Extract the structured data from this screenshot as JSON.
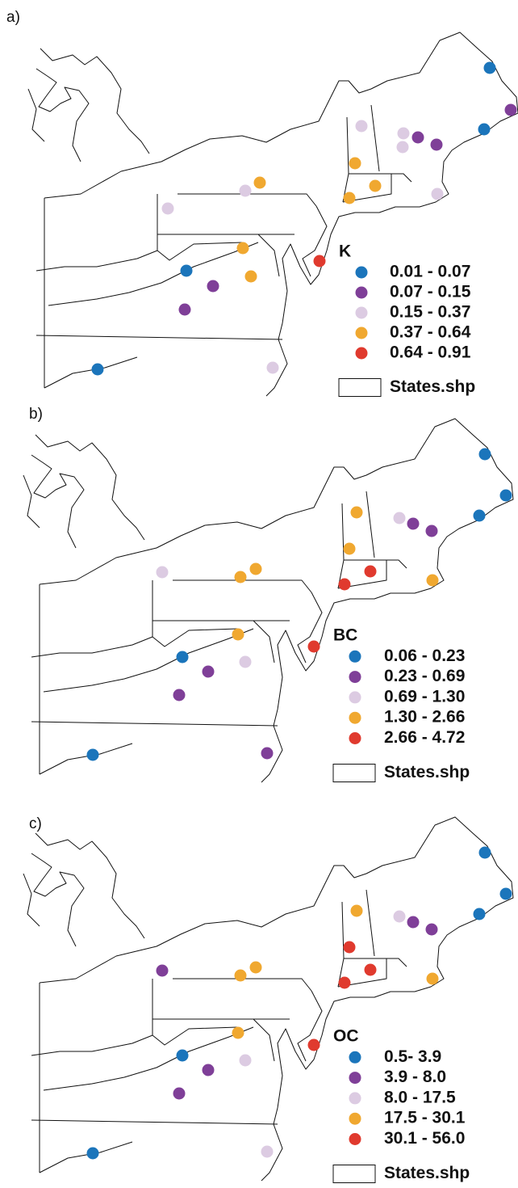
{
  "panels": [
    {
      "label": "a)",
      "legend": {
        "title": "K",
        "layer": "States.shp",
        "classes": [
          {
            "label": "0.01 - 0.07",
            "color": "#1b75bb"
          },
          {
            "label": "0.07 - 0.15",
            "color": "#7f3f98"
          },
          {
            "label": "0.15 - 0.37",
            "color": "#dccbe2"
          },
          {
            "label": "0.37 - 0.64",
            "color": "#f0a830"
          },
          {
            "label": "0.64 - 0.91",
            "color": "#e03a2e"
          }
        ]
      }
    },
    {
      "label": "b)",
      "legend": {
        "title": "BC",
        "layer": "States.shp",
        "classes": [
          {
            "label": "0.06 - 0.23",
            "color": "#1b75bb"
          },
          {
            "label": "0.23 - 0.69",
            "color": "#7f3f98"
          },
          {
            "label": "0.69 - 1.30",
            "color": "#dccbe2"
          },
          {
            "label": "1.30 - 2.66",
            "color": "#f0a830"
          },
          {
            "label": "2.66 - 4.72",
            "color": "#e03a2e"
          }
        ]
      }
    },
    {
      "label": "c)",
      "legend": {
        "title": "OC",
        "layer": "States.shp",
        "classes": [
          {
            "label": "0.5- 3.9",
            "color": "#1b75bb"
          },
          {
            "label": "3.9 - 8.0",
            "color": "#7f3f98"
          },
          {
            "label": "8.0 - 17.5",
            "color": "#dccbe2"
          },
          {
            "label": "17.5 - 30.1",
            "color": "#f0a830"
          },
          {
            "label": "30.1 - 56.0",
            "color": "#e03a2e"
          }
        ]
      }
    }
  ]
}
